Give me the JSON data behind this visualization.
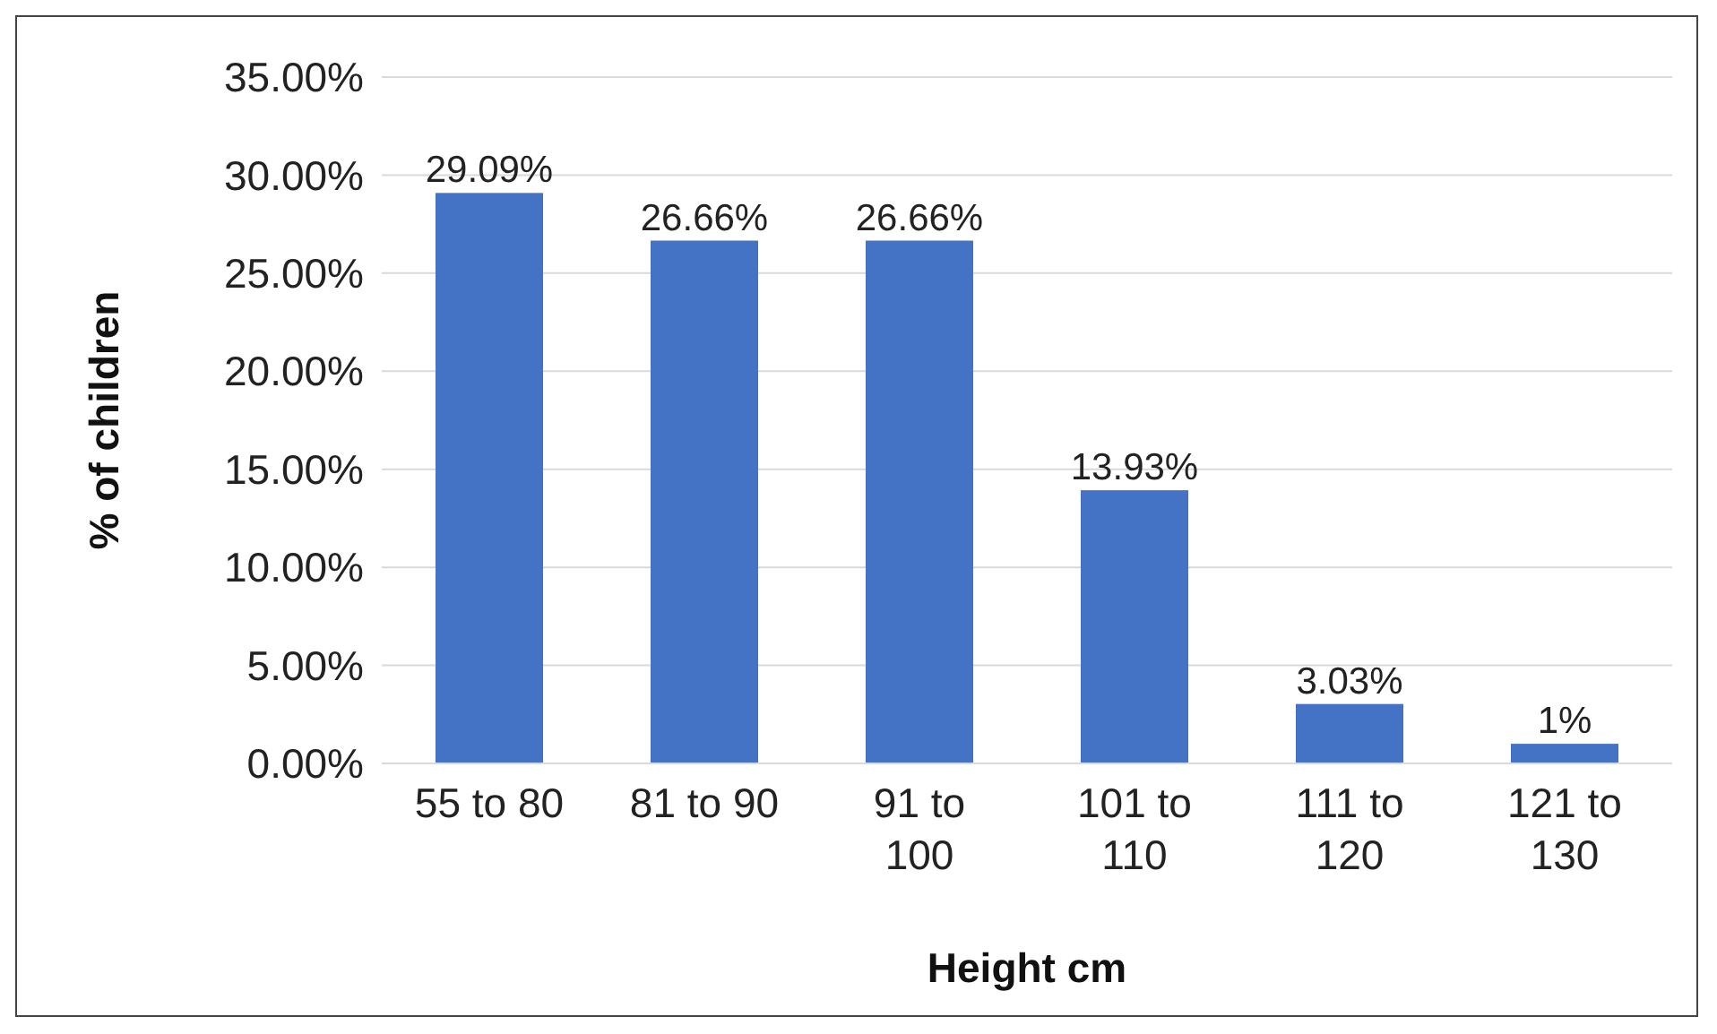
{
  "chart_data": {
    "type": "bar",
    "xlabel": "Height cm",
    "ylabel": "% of children",
    "categories": [
      "55 to 80",
      "81 to 90",
      "91 to 100",
      "101 to 110",
      "111 to 120",
      "121 to 130"
    ],
    "values": [
      29.09,
      26.66,
      26.66,
      13.93,
      3.03,
      1
    ],
    "value_labels": [
      "29.09%",
      "26.66%",
      "26.66%",
      "13.93%",
      "3.03%",
      "1%"
    ],
    "color": "#4472c4",
    "ylim": [
      0,
      35
    ],
    "yticks": [
      {
        "value": 0,
        "label": "0.00%"
      },
      {
        "value": 5,
        "label": "5.00%"
      },
      {
        "value": 10,
        "label": "10.00%"
      },
      {
        "value": 15,
        "label": "15.00%"
      },
      {
        "value": 20,
        "label": "20.00%"
      },
      {
        "value": 25,
        "label": "25.00%"
      },
      {
        "value": 30,
        "label": "30.00%"
      },
      {
        "value": 35,
        "label": "35.00%"
      }
    ],
    "grid": "y"
  }
}
